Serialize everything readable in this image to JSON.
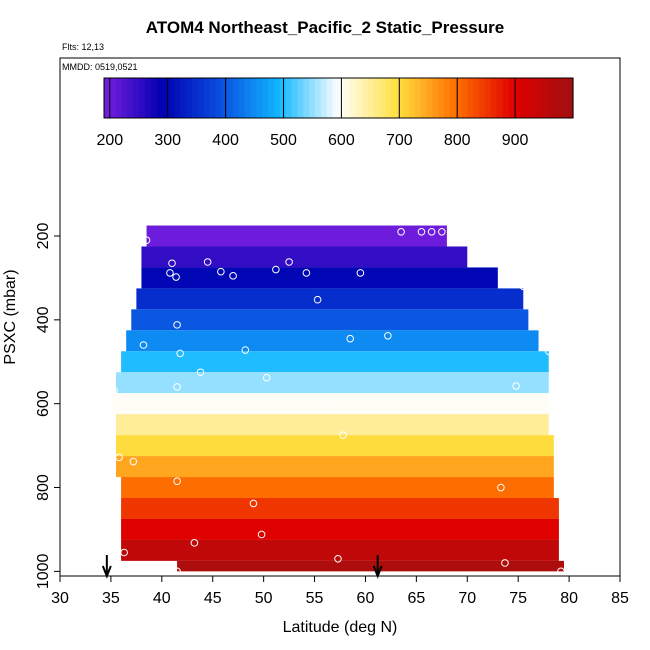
{
  "chart_data": {
    "type": "heatmap",
    "title": "ATOM4 Northeast_Pacific_2 Static_Pressure",
    "annotations": {
      "flights": "Flts: 12,13",
      "dates": "MMDD: 0519,0521"
    },
    "xlabel": "Latitude (deg N)",
    "ylabel": "PSXC (mbar)",
    "xlim": [
      30,
      85
    ],
    "ylim": [
      1000,
      100
    ],
    "x_ticks": [
      30,
      35,
      40,
      45,
      50,
      55,
      60,
      65,
      70,
      75,
      80,
      85
    ],
    "y_ticks": [
      200,
      400,
      600,
      800,
      1000
    ],
    "colorbar": {
      "range": [
        190,
        1000
      ],
      "ticks": [
        200,
        300,
        400,
        500,
        600,
        700,
        800,
        900
      ],
      "colors": [
        "#7a1fe0",
        "#0000b0",
        "#0a50e0",
        "#10b8ff",
        "#ffffff",
        "#ffe040",
        "#ff7000",
        "#e00000",
        "#a01010"
      ]
    },
    "bins": [
      {
        "p_bottom": 175,
        "p_top": 225,
        "lat_min": 38.5,
        "lat_max": 68.0,
        "value": 200
      },
      {
        "p_bottom": 225,
        "p_top": 275,
        "lat_min": 38.0,
        "lat_max": 70.0,
        "value": 250
      },
      {
        "p_bottom": 275,
        "p_top": 325,
        "lat_min": 38.0,
        "lat_max": 73.0,
        "value": 300
      },
      {
        "p_bottom": 325,
        "p_top": 375,
        "lat_min": 37.5,
        "lat_max": 75.5,
        "value": 350
      },
      {
        "p_bottom": 375,
        "p_top": 425,
        "lat_min": 37.0,
        "lat_max": 76.0,
        "value": 400
      },
      {
        "p_bottom": 425,
        "p_top": 475,
        "lat_min": 36.5,
        "lat_max": 77.0,
        "value": 450
      },
      {
        "p_bottom": 475,
        "p_top": 525,
        "lat_min": 36.0,
        "lat_max": 78.0,
        "value": 500
      },
      {
        "p_bottom": 525,
        "p_top": 575,
        "lat_min": 35.5,
        "lat_max": 78.0,
        "value": 550
      },
      {
        "p_bottom": 575,
        "p_top": 625,
        "lat_min": 35.0,
        "lat_max": 78.0,
        "value": 600
      },
      {
        "p_bottom": 625,
        "p_top": 675,
        "lat_min": 35.5,
        "lat_max": 78.0,
        "value": 650
      },
      {
        "p_bottom": 675,
        "p_top": 725,
        "lat_min": 35.5,
        "lat_max": 78.5,
        "value": 700
      },
      {
        "p_bottom": 725,
        "p_top": 775,
        "lat_min": 35.5,
        "lat_max": 78.5,
        "value": 750
      },
      {
        "p_bottom": 775,
        "p_top": 825,
        "lat_min": 36.0,
        "lat_max": 78.5,
        "value": 800
      },
      {
        "p_bottom": 825,
        "p_top": 875,
        "lat_min": 36.0,
        "lat_max": 79.0,
        "value": 850
      },
      {
        "p_bottom": 875,
        "p_top": 925,
        "lat_min": 36.0,
        "lat_max": 79.0,
        "value": 900
      },
      {
        "p_bottom": 925,
        "p_top": 975,
        "lat_min": 36.0,
        "lat_max": 79.0,
        "value": 950
      },
      {
        "p_bottom": 975,
        "p_top": 1000,
        "lat_min": 41.5,
        "lat_max": 79.5,
        "value": 980
      }
    ],
    "points": [
      [
        38.5,
        210
      ],
      [
        63.5,
        190
      ],
      [
        65.5,
        190
      ],
      [
        66.5,
        190
      ],
      [
        67.5,
        190
      ],
      [
        41.0,
        265
      ],
      [
        44.5,
        262
      ],
      [
        52.5,
        262
      ],
      [
        40.8,
        288
      ],
      [
        41.4,
        298
      ],
      [
        45.8,
        285
      ],
      [
        47.0,
        295
      ],
      [
        51.2,
        280
      ],
      [
        54.2,
        288
      ],
      [
        59.5,
        288
      ],
      [
        75.5,
        320
      ],
      [
        55.3,
        352
      ],
      [
        41.5,
        412
      ],
      [
        62.2,
        438
      ],
      [
        58.5,
        445
      ],
      [
        38.2,
        460
      ],
      [
        41.8,
        480
      ],
      [
        48.2,
        472
      ],
      [
        78.0,
        475
      ],
      [
        43.8,
        525
      ],
      [
        50.3,
        538
      ],
      [
        41.5,
        560
      ],
      [
        74.8,
        558
      ],
      [
        35.3,
        568
      ],
      [
        56.5,
        595
      ],
      [
        57.8,
        675
      ],
      [
        35.8,
        728
      ],
      [
        37.2,
        738
      ],
      [
        41.5,
        785
      ],
      [
        73.3,
        800
      ],
      [
        49.0,
        838
      ],
      [
        49.8,
        912
      ],
      [
        43.2,
        932
      ],
      [
        36.3,
        955
      ],
      [
        57.3,
        970
      ],
      [
        73.7,
        980
      ],
      [
        41.5,
        1000
      ],
      [
        79.2,
        1000
      ]
    ],
    "arrows": [
      34.6,
      61.2
    ]
  }
}
